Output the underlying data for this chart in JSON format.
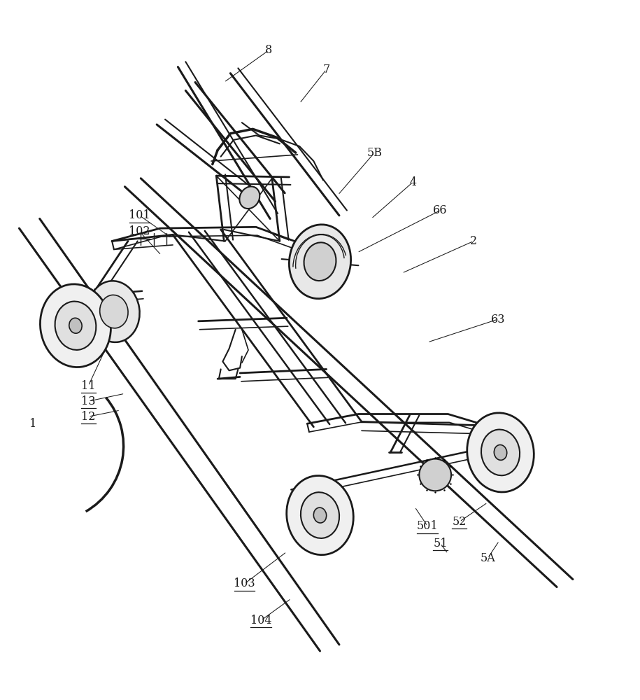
{
  "background": "#ffffff",
  "lc": "#1a1a1a",
  "fig_w": 9.15,
  "fig_h": 10.0,
  "labels": {
    "8": [
      0.42,
      0.032,
      false
    ],
    "7": [
      0.51,
      0.062,
      false
    ],
    "5B": [
      0.585,
      0.192,
      false
    ],
    "4": [
      0.645,
      0.238,
      false
    ],
    "66": [
      0.688,
      0.282,
      false
    ],
    "2": [
      0.74,
      0.33,
      false
    ],
    "101": [
      0.218,
      0.29,
      true
    ],
    "102": [
      0.218,
      0.315,
      true
    ],
    "63": [
      0.778,
      0.452,
      false
    ],
    "11": [
      0.138,
      0.556,
      true
    ],
    "13": [
      0.138,
      0.58,
      true
    ],
    "12": [
      0.138,
      0.604,
      true
    ],
    "1": [
      0.052,
      0.615,
      false
    ],
    "501": [
      0.668,
      0.775,
      true
    ],
    "52": [
      0.718,
      0.768,
      true
    ],
    "51": [
      0.688,
      0.802,
      true
    ],
    "5A": [
      0.762,
      0.825,
      false
    ],
    "103": [
      0.382,
      0.865,
      true
    ],
    "104": [
      0.408,
      0.922,
      true
    ]
  }
}
